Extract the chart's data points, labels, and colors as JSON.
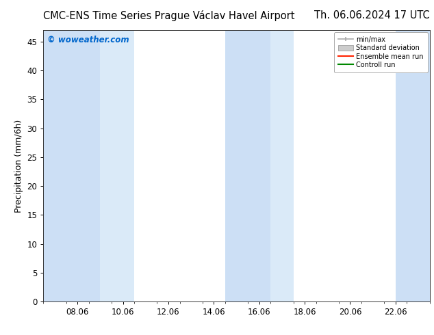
{
  "title": "CMC-ENS Time Series Prague Václav Havel Airport      Th. 06.06.2024 17 UTC",
  "title_left": "CMC-ENS Time Series Prague Václav Havel Airport",
  "title_right": "Th. 06.06.2024 17 UTC",
  "ylabel": "Precipitation (mm/6h)",
  "watermark": "© woweather.com",
  "watermark_color": "#0066cc",
  "background_color": "#ffffff",
  "plot_bg_color": "#ffffff",
  "ylim": [
    0,
    47
  ],
  "yticks": [
    0,
    5,
    10,
    15,
    20,
    25,
    30,
    35,
    40,
    45
  ],
  "xlim_start": 6.5,
  "xlim_end": 23.5,
  "xtick_labels": [
    "08.06",
    "10.06",
    "12.06",
    "14.06",
    "16.06",
    "18.06",
    "20.06",
    "22.06"
  ],
  "xtick_positions": [
    8.0,
    10.0,
    12.0,
    14.0,
    16.0,
    18.0,
    20.0,
    22.0
  ],
  "shaded_regions": [
    {
      "xstart": 6.5,
      "xend": 7.0,
      "color": "#ccdff5"
    },
    {
      "xstart": 7.0,
      "xend": 9.0,
      "color": "#ccdff5"
    },
    {
      "xstart": 9.0,
      "xend": 10.5,
      "color": "#daeaf8"
    },
    {
      "xstart": 14.5,
      "xend": 16.5,
      "color": "#ccdff5"
    },
    {
      "xstart": 16.5,
      "xend": 17.5,
      "color": "#daeaf8"
    },
    {
      "xstart": 22.0,
      "xend": 23.5,
      "color": "#ccdff5"
    }
  ],
  "title_fontsize": 10.5,
  "axis_fontsize": 9,
  "tick_fontsize": 8.5
}
